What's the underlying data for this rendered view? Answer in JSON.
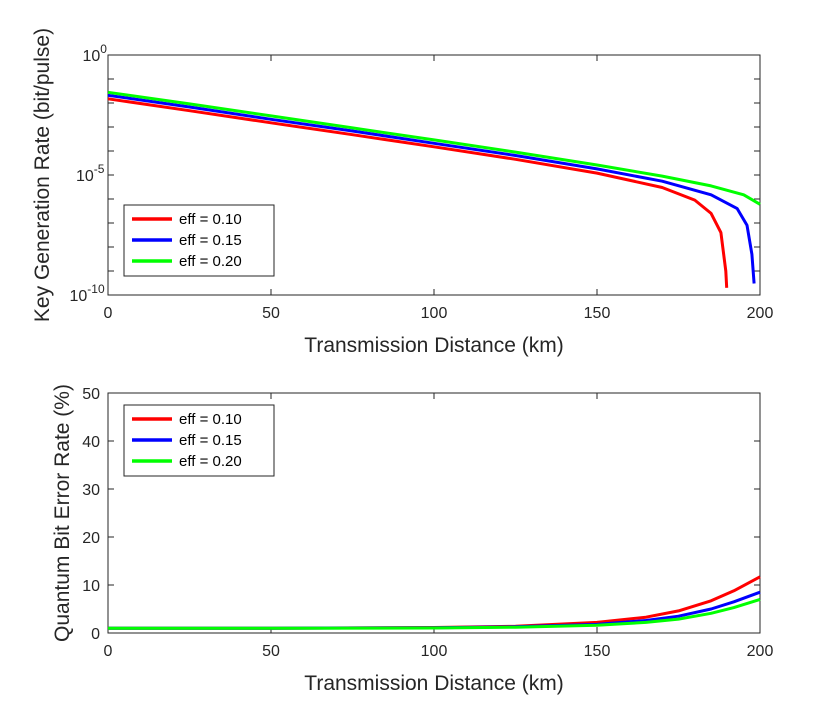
{
  "chart_data": [
    {
      "type": "line",
      "title": "",
      "xlabel": "Transmission Distance (km)",
      "ylabel": "Key Generation Rate (bit/pulse)",
      "xlim": [
        0,
        200
      ],
      "ylim": [
        1e-10,
        1
      ],
      "yscale": "log",
      "xticks": [
        "0",
        "50",
        "100",
        "150",
        "200"
      ],
      "yticks": [
        {
          "base": "10",
          "exp": "0"
        },
        {
          "base": "10",
          "exp": "-5"
        },
        {
          "base": "10",
          "exp": "-10"
        }
      ],
      "grid": false,
      "legend_position": "bottom-left",
      "series": [
        {
          "name": "eff = 0.10",
          "color": "#ff0000",
          "x": [
            0,
            25,
            50,
            75,
            100,
            125,
            150,
            170,
            180,
            185,
            188,
            189.5,
            189.8
          ],
          "y": [
            0.015,
            0.0048,
            0.0015,
            0.00048,
            0.00015,
            4.5e-05,
            1.2e-05,
            3e-06,
            9e-07,
            2.5e-07,
            4e-08,
            1e-09,
            2e-10
          ]
        },
        {
          "name": "eff = 0.15",
          "color": "#0000ff",
          "x": [
            0,
            25,
            50,
            75,
            100,
            125,
            150,
            170,
            185,
            193,
            196,
            197.5,
            198.2
          ],
          "y": [
            0.021,
            0.0068,
            0.0021,
            0.00068,
            0.00021,
            6.5e-05,
            1.8e-05,
            5.5e-06,
            1.5e-06,
            4e-07,
            8e-08,
            5e-09,
            3e-10
          ]
        },
        {
          "name": "eff = 0.20",
          "color": "#00ff00",
          "x": [
            0,
            25,
            50,
            75,
            100,
            125,
            150,
            170,
            185,
            195,
            200
          ],
          "y": [
            0.028,
            0.0092,
            0.0029,
            0.00092,
            0.00029,
            9e-05,
            2.6e-05,
            9e-06,
            3.5e-06,
            1.5e-06,
            6e-07
          ]
        }
      ]
    },
    {
      "type": "line",
      "title": "",
      "xlabel": "Transmission Distance (km)",
      "ylabel": "Quantum Bit Error Rate (%)",
      "xlim": [
        0,
        200
      ],
      "ylim": [
        0,
        50
      ],
      "xticks": [
        "0",
        "50",
        "100",
        "150",
        "200"
      ],
      "yticks": [
        "0",
        "10",
        "20",
        "30",
        "40",
        "50"
      ],
      "grid": false,
      "legend_position": "top-left",
      "series": [
        {
          "name": "eff = 0.10",
          "color": "#ff0000",
          "x": [
            0,
            50,
            100,
            125,
            150,
            165,
            175,
            185,
            192,
            200
          ],
          "y": [
            1.0,
            1.0,
            1.15,
            1.4,
            2.2,
            3.3,
            4.6,
            6.7,
            8.8,
            11.7
          ]
        },
        {
          "name": "eff = 0.15",
          "color": "#0000ff",
          "x": [
            0,
            50,
            100,
            125,
            150,
            165,
            175,
            185,
            192,
            200
          ],
          "y": [
            1.0,
            1.0,
            1.1,
            1.3,
            1.8,
            2.6,
            3.5,
            5.0,
            6.5,
            8.5
          ]
        },
        {
          "name": "eff = 0.20",
          "color": "#00ff00",
          "x": [
            0,
            50,
            100,
            125,
            150,
            165,
            175,
            185,
            192,
            200
          ],
          "y": [
            1.0,
            1.0,
            1.05,
            1.2,
            1.6,
            2.2,
            2.9,
            4.1,
            5.3,
            7.0
          ]
        }
      ]
    }
  ]
}
